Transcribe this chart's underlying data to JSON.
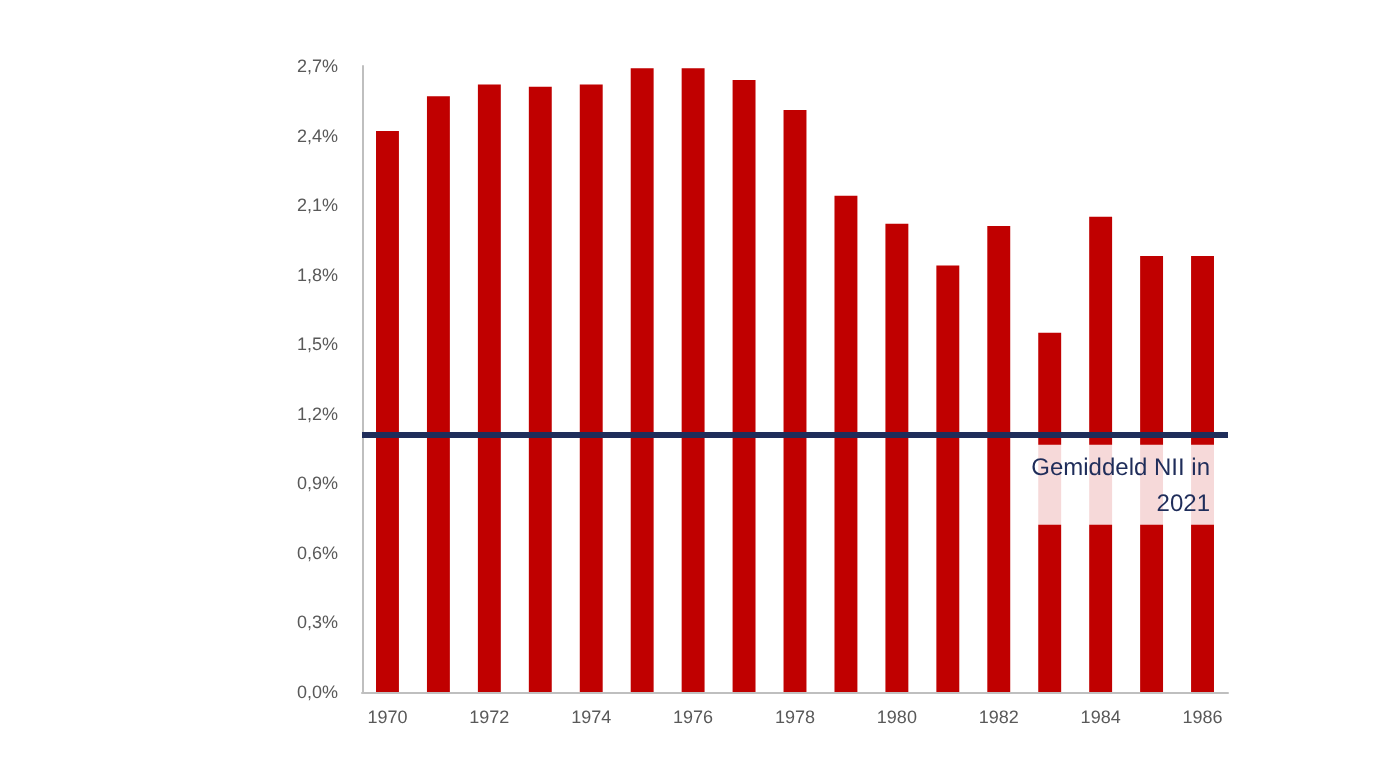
{
  "chart_data": {
    "type": "bar",
    "categories": [
      "1970",
      null,
      "1972",
      null,
      "1974",
      null,
      "1976",
      null,
      "1978",
      null,
      "1980",
      null,
      "1982",
      null,
      "1984",
      null,
      "1986"
    ],
    "values": [
      2.42,
      2.57,
      2.62,
      2.61,
      2.62,
      2.69,
      2.69,
      2.64,
      2.51,
      2.14,
      2.02,
      1.84,
      2.01,
      1.55,
      2.05,
      1.88,
      1.88
    ],
    "color": "#c00000",
    "ylim": [
      0,
      2.7
    ],
    "yticks": [
      {
        "value": 0,
        "label": "0,0%"
      },
      {
        "value": 0.3,
        "label": "0,3%"
      },
      {
        "value": 0.6,
        "label": "0,6%"
      },
      {
        "value": 0.9,
        "label": "0,9%"
      },
      {
        "value": 1.2,
        "label": "1,2%"
      },
      {
        "value": 1.5,
        "label": "1,5%"
      },
      {
        "value": 1.8,
        "label": "1,8%"
      },
      {
        "value": 2.1,
        "label": "2,1%"
      },
      {
        "value": 2.4,
        "label": "2,4%"
      },
      {
        "value": 2.7,
        "label": "2,7%"
      }
    ],
    "ref_lines": [
      {
        "axis": "y",
        "value": 1.11,
        "label": "Gemiddeld NII in\n2021",
        "color": "#1f2d5a"
      }
    ],
    "grid": false
  }
}
